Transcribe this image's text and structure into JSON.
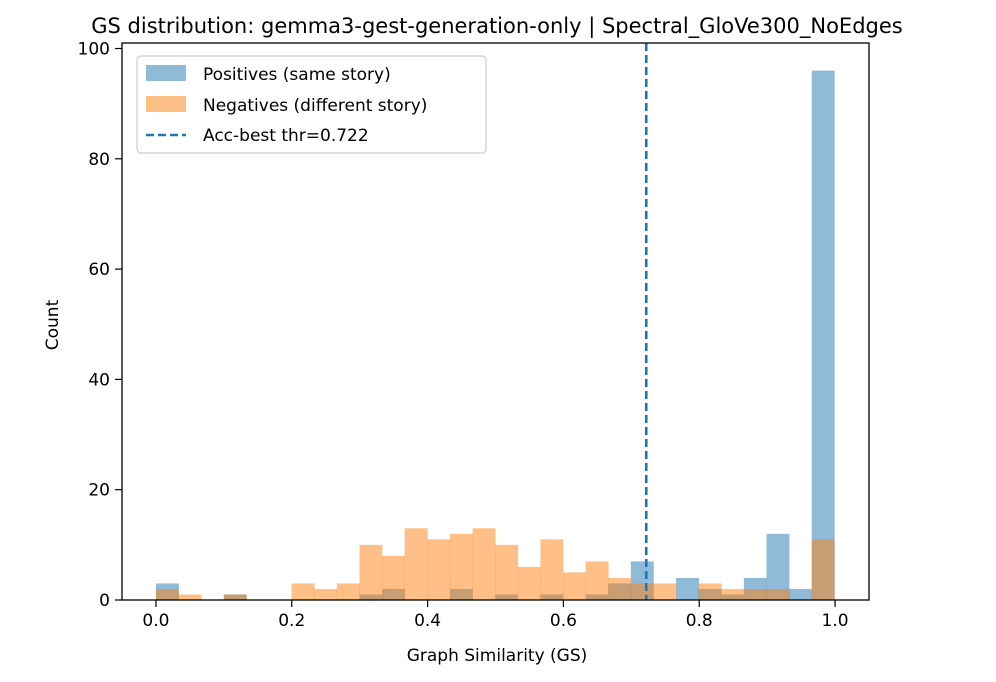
{
  "chart_data": {
    "type": "bar",
    "title": "GS distribution: gemma3-gest-generation-only | Spectral_GloVe300_NoEdges",
    "xlabel": "Graph Similarity (GS)",
    "ylabel": "Count",
    "xlim": [
      -0.05,
      1.05
    ],
    "ylim": [
      0,
      101
    ],
    "xticks": [
      "0.0",
      "0.2",
      "0.4",
      "0.6",
      "0.8",
      "1.0"
    ],
    "yticks": [
      "0",
      "20",
      "40",
      "60",
      "80",
      "100"
    ],
    "bins": {
      "start": 0.0,
      "width": 0.0333,
      "count": 30
    },
    "series": [
      {
        "name": "Positives (same story)",
        "color": "#1f77b4",
        "opacity": 0.5,
        "values": [
          3,
          0,
          0,
          1,
          0,
          0,
          0,
          0,
          0,
          1,
          2,
          0,
          0,
          2,
          0,
          1,
          0,
          1,
          0,
          1,
          3,
          7,
          0,
          4,
          2,
          1,
          4,
          12,
          2,
          96
        ]
      },
      {
        "name": "Negatives (different story)",
        "color": "#ff7f0e",
        "opacity": 0.5,
        "values": [
          2,
          1,
          0,
          1,
          0,
          0,
          3,
          2,
          3,
          10,
          8,
          13,
          11,
          12,
          13,
          10,
          6,
          11,
          5,
          7,
          4,
          3,
          3,
          0,
          3,
          2,
          2,
          2,
          0,
          11
        ]
      }
    ],
    "threshold": {
      "label": "Acc-best thr=0.722",
      "value": 0.722,
      "color": "#1f77b4",
      "style": "dashed"
    },
    "legend_position": "top-left",
    "grid": false
  }
}
